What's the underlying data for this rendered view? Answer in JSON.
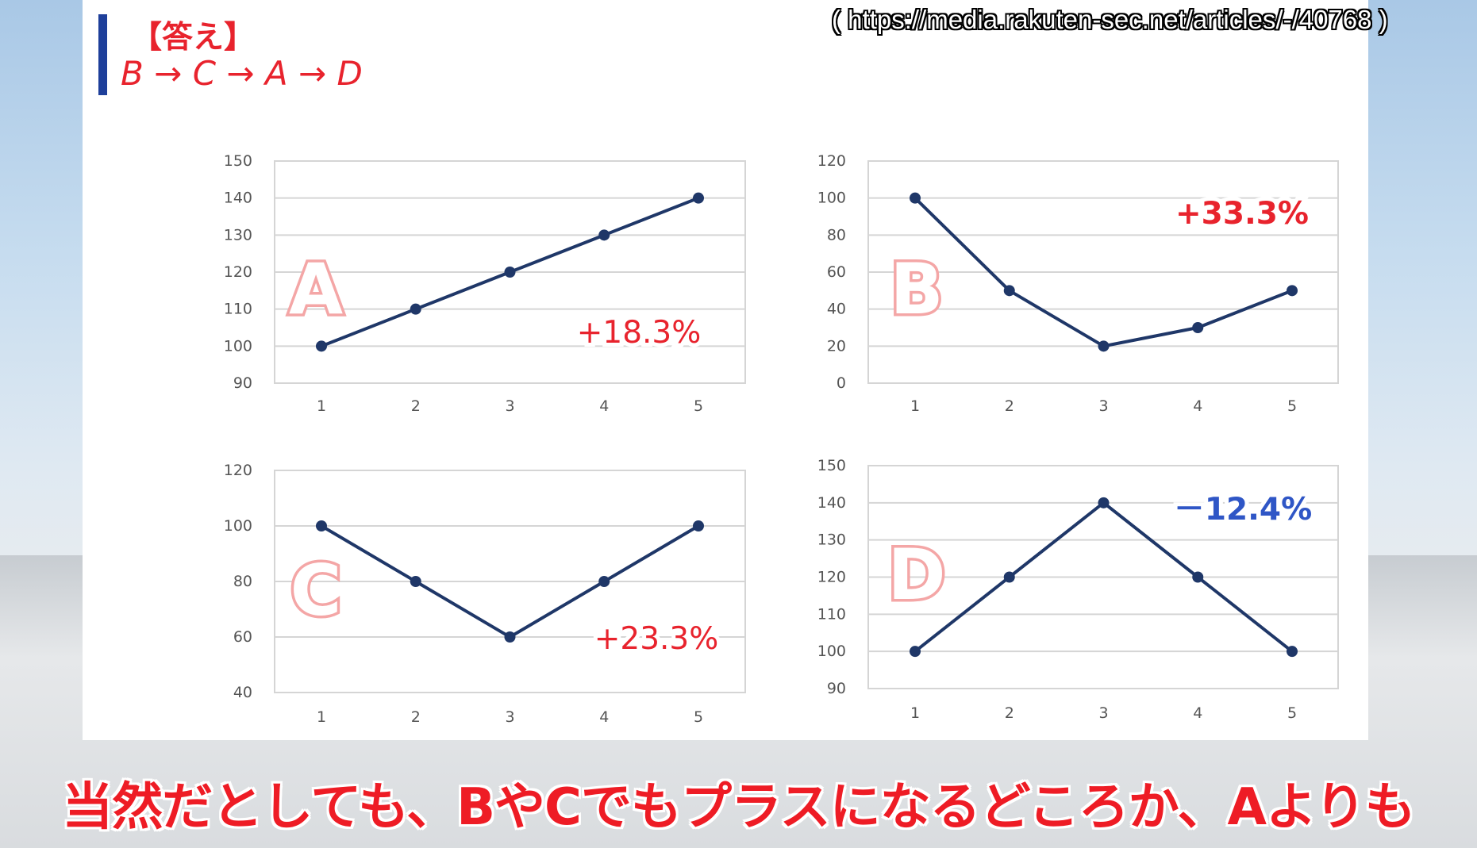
{
  "header": {
    "answer_heading": "【答え】",
    "answer_order": "B → C → A → D",
    "source_url": "( https://media.rakuten-sec.net/articles/-/40768 )"
  },
  "subtitle": "当然だとしても、BやCでもプラスになるどころか、Aよりも",
  "colors": {
    "line": "#1f3768",
    "positive": "#e8232d",
    "negative": "#2f56c6",
    "letter": "#f4a6a6",
    "accent": "#1e3f9a"
  },
  "chart_data": [
    {
      "type": "line",
      "letter": "A",
      "x": [
        1,
        2,
        3,
        4,
        5
      ],
      "y": [
        100,
        110,
        120,
        130,
        140
      ],
      "yticks": [
        90,
        100,
        110,
        120,
        130,
        140,
        150
      ],
      "ylim": [
        90,
        150
      ],
      "annotation": "+18.3%",
      "annotation_color": "positive",
      "grid": true
    },
    {
      "type": "line",
      "letter": "B",
      "x": [
        1,
        2,
        3,
        4,
        5
      ],
      "y": [
        100,
        50,
        20,
        30,
        50
      ],
      "yticks": [
        0,
        20,
        40,
        60,
        80,
        100,
        120
      ],
      "ylim": [
        0,
        120
      ],
      "annotation": "+33.3%",
      "annotation_color": "positive",
      "grid": true
    },
    {
      "type": "line",
      "letter": "C",
      "x": [
        1,
        2,
        3,
        4,
        5
      ],
      "y": [
        100,
        80,
        60,
        80,
        100
      ],
      "yticks": [
        40,
        60,
        80,
        100,
        120
      ],
      "ylim": [
        40,
        120
      ],
      "annotation": "+23.3%",
      "annotation_color": "positive",
      "grid": true
    },
    {
      "type": "line",
      "letter": "D",
      "x": [
        1,
        2,
        3,
        4,
        5
      ],
      "y": [
        100,
        120,
        140,
        120,
        100
      ],
      "yticks": [
        90,
        100,
        110,
        120,
        130,
        140,
        150
      ],
      "ylim": [
        90,
        150
      ],
      "annotation": "－12.4%",
      "annotation_color": "negative",
      "grid": true
    }
  ]
}
